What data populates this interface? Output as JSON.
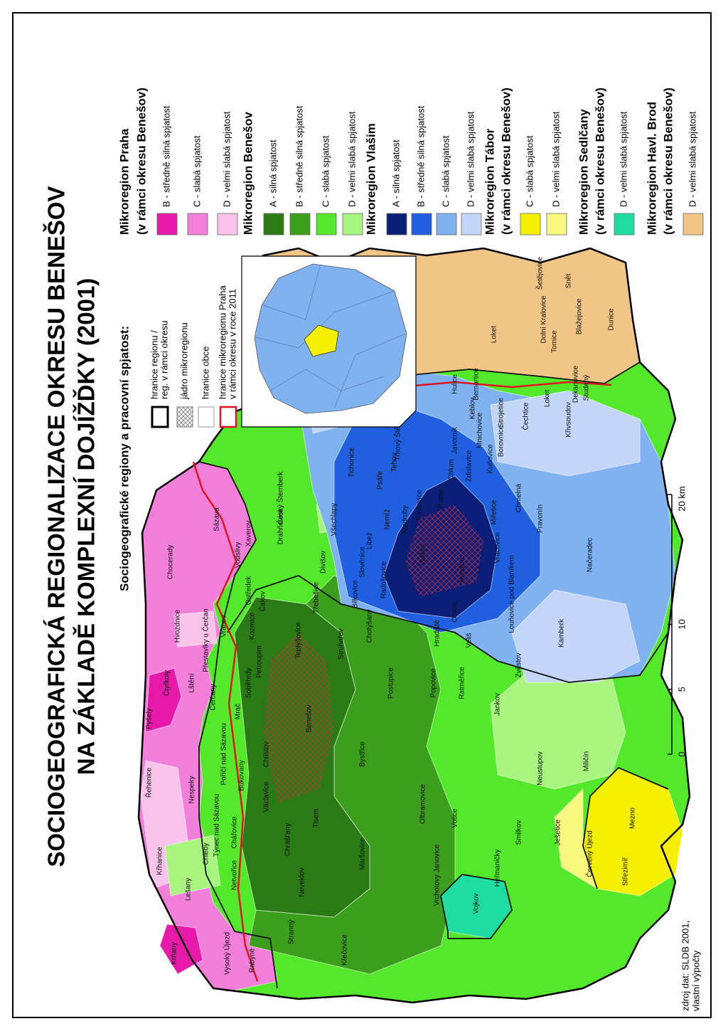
{
  "title": [
    "SOCIOGEOGRAFICKÁ REGIONALIZACE OKRESU BENEŠOV",
    "NA ZÁKLADĚ KOMPLEXNÍ DOJÍŽĎKY (2001)"
  ],
  "legend": {
    "title": "Sociogeografické regiony a pracovní spjatost:",
    "items": [
      [
        "hranice regionu /",
        "reg. v rámci okresu"
      ],
      [
        "jádro mikroregionu"
      ],
      [
        "hranice obce"
      ],
      [
        "hranice mikroregionu Praha",
        "v rámci okresu v roce 2011"
      ]
    ]
  },
  "microregions": [
    {
      "name": "Mikroregion Praha",
      "subtitle": "(v rámci okresu Benešov)",
      "classes": [
        {
          "label": "B - středně silná spjatost",
          "color": "#e619a8"
        },
        {
          "label": "C - slabá spjatost",
          "color": "#f27fd9"
        },
        {
          "label": "D - velmi slabá spjatost",
          "color": "#f9c3ec"
        }
      ]
    },
    {
      "name": "Mikroregion Benešov",
      "classes": [
        {
          "label": "A - silná spjatost",
          "color": "#2a7a16"
        },
        {
          "label": "B - středně silná spjatost",
          "color": "#3b9e1c"
        },
        {
          "label": "C - slabá spjatost",
          "color": "#54e82b"
        },
        {
          "label": "D - velmi slabá spjatost",
          "color": "#a8f57f"
        }
      ]
    },
    {
      "name": "Mikroregion Vlašim",
      "classes": [
        {
          "label": "A - silná spjatost",
          "color": "#0b1e78"
        },
        {
          "label": "B - středně silná spjatost",
          "color": "#1f5fe0"
        },
        {
          "label": "C - slabá spjatost",
          "color": "#80b2f2"
        },
        {
          "label": "D - velmi slabá spjatost",
          "color": "#c3d6f8"
        }
      ]
    },
    {
      "name": "Mikroregion Tábor",
      "subtitle": "(v rámci okresu Benešov)",
      "classes": [
        {
          "label": "C - slabá spjatost",
          "color": "#f5f000"
        },
        {
          "label": "D - velmi slabá spjatost",
          "color": "#f8f77e"
        }
      ]
    },
    {
      "name": "Mikroregion Sedlčany",
      "subtitle": "(v rámci okresu Benešov)",
      "classes": [
        {
          "label": "D - velmi slabá spjatost",
          "color": "#1fdca0"
        }
      ]
    },
    {
      "name": "Mikroregion Havl. Brod",
      "subtitle": "(v rámci okresu Benešov)",
      "classes": [
        {
          "label": "D - velmi slabá spjatost",
          "color": "#f0c585"
        }
      ]
    }
  ],
  "municipalities": [
    "Křhanice",
    "Řehenice",
    "Pyšely",
    "Čtyřkoly",
    "Lštění",
    "Čerčany",
    "Hvozdnice",
    "Přestavlky u Čerčan",
    "Chocerady",
    "Sázava",
    "Vodslivy",
    "Xaverov",
    "Nespeky",
    "Poříčí nad Sázavou",
    "Bukovany",
    "Týnec nad Sázavou",
    "Chleby",
    "Chářovice",
    "Netvořice",
    "Lešany",
    "Krňany",
    "Rabyně",
    "Vysoký Újezd",
    "Václavice",
    "Chlístov",
    "Benešov",
    "Mrač",
    "Soběhrdy",
    "Petroupim",
    "Vranov",
    "Kozmice",
    "Ostředek",
    "Čakov",
    "Drahňovice",
    "Český Šternberk",
    "Divišov",
    "Teplýšovice",
    "Struhařov",
    "Třebešice",
    "Všechlapy",
    "Tichonice",
    "Psáře",
    "Libež",
    "Slověnice",
    "Bílkovice",
    "Radošovice",
    "Nemíž",
    "Tehov",
    "Kladruby",
    "Pavlovice",
    "Vlašim",
    "Rataje",
    "Trhový Štěpánov",
    "Soutice",
    "Chlum",
    "Hulice",
    "Keblov",
    "Javorník",
    "Zdislavice",
    "Mnichovice",
    "Kuňovice",
    "Borovnice",
    "Strojetice",
    "Čechtice",
    "Křivsoudov",
    "Loket",
    "Loket",
    "Bernartice",
    "Dekanovice",
    "Studený",
    "Tomice",
    "Dolní Kralovice",
    "Šetějovice",
    "Snět",
    "Blažejovice",
    "Dunice",
    "Miřetice",
    "Vracovice",
    "Chmelná",
    "Pravonín",
    "Kondrac",
    "Louňovice pod Blaníkem",
    "Ostrov",
    "Hradiště",
    "Veliš",
    "Zvěstov",
    "Kamberk",
    "Načeradec",
    "Chotýšany",
    "Postupice",
    "Popovice",
    "Ratměřice",
    "Jankov",
    "Neustupov",
    "Miličín",
    "Mezno",
    "Střezimíř",
    "Červený Újezd",
    "Ješetice",
    "Smilkov",
    "Heřmaničky",
    "Votice",
    "Olbramovice",
    "Bystřice",
    "Tisem",
    "Chrášťany",
    "Neveklov",
    "Maršovice",
    "Vrchotovy Janovice",
    "Stranný",
    "Křečovice",
    "Vojkov"
  ],
  "scale_bar": {
    "ticks": [
      0,
      5,
      10,
      {
        "value": 20,
        "label": "20 km"
      }
    ]
  },
  "source": [
    "zdroj dat: SLDB 2001,",
    "vlastní výpočty"
  ]
}
